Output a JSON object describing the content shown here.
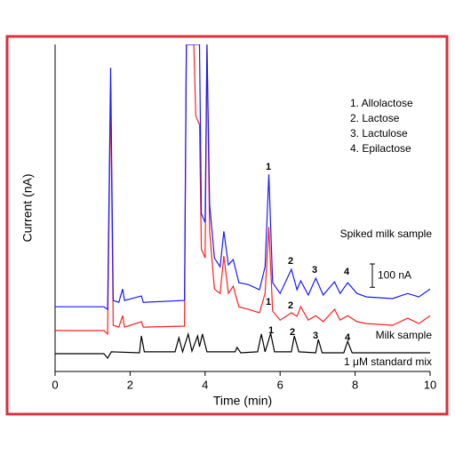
{
  "chart_data": {
    "type": "line",
    "x_title": "Time (min)",
    "y_title": "Current (nA)",
    "xlim": [
      0,
      10
    ],
    "xticks": [
      0,
      2,
      4,
      6,
      8,
      10
    ],
    "ylim": [
      0,
      1400
    ],
    "grid": false,
    "legend_items": [
      "1. Allolactose",
      "2. Lactose",
      "3. Lactulose",
      "4. Epilactose"
    ],
    "peak_numbers": [
      "1",
      "2",
      "3",
      "4"
    ],
    "scale_bar": {
      "value": 100,
      "label": "100 nA"
    },
    "series": [
      {
        "name": "Spiked milk sample",
        "color": "#1a1aff",
        "x": [
          0,
          1.3,
          1.4,
          1.48,
          1.55,
          1.7,
          1.8,
          1.85,
          2.3,
          2.35,
          3.45,
          3.5,
          3.7,
          3.75,
          3.85,
          3.9,
          4.0,
          4.05,
          4.12,
          4.25,
          4.4,
          4.5,
          4.62,
          4.75,
          4.9,
          5.15,
          5.45,
          5.6,
          5.7,
          5.8,
          6.0,
          6.3,
          6.45,
          6.55,
          6.75,
          6.95,
          7.15,
          7.45,
          7.6,
          7.8,
          8.05,
          8.3,
          9.0,
          9.4,
          9.7,
          10
        ],
        "values": [
          277,
          277,
          266,
          1300,
          304,
          296,
          353,
          304,
          323,
          296,
          304,
          1400,
          1400,
          1400,
          1400,
          676,
          638,
          1400,
          714,
          486,
          448,
          600,
          456,
          479,
          380,
          372,
          350,
          448,
          844,
          380,
          334,
          437,
          350,
          388,
          327,
          399,
          327,
          384,
          334,
          380,
          334,
          319,
          312,
          334,
          319,
          353
        ]
      },
      {
        "name": "Milk sample",
        "color": "#ff2020",
        "x": [
          0,
          1.3,
          1.4,
          1.48,
          1.55,
          1.7,
          1.8,
          1.85,
          2.3,
          2.35,
          3.45,
          3.5,
          3.7,
          3.75,
          3.85,
          3.9,
          4.0,
          4.05,
          4.12,
          4.25,
          4.4,
          4.5,
          4.62,
          4.75,
          4.9,
          5.15,
          5.45,
          5.6,
          5.7,
          5.8,
          6.0,
          6.3,
          6.45,
          6.55,
          6.75,
          6.95,
          7.15,
          7.45,
          7.6,
          7.8,
          8.05,
          8.3,
          9.0,
          9.4,
          9.7,
          10
        ],
        "values": [
          175,
          175,
          160,
          1208,
          198,
          190,
          239,
          190,
          213,
          190,
          194,
          1400,
          1400,
          1094,
          1056,
          524,
          486,
          1400,
          600,
          353,
          334,
          494,
          334,
          365,
          277,
          266,
          251,
          334,
          619,
          258,
          220,
          251,
          236,
          277,
          220,
          239,
          213,
          266,
          220,
          239,
          213,
          205,
          198,
          228,
          205,
          239
        ]
      },
      {
        "name": "1 μM standard mix",
        "color": "#000000",
        "x": [
          0,
          1.3,
          1.4,
          1.5,
          2.25,
          2.3,
          2.38,
          3.2,
          3.3,
          3.4,
          3.55,
          3.65,
          3.8,
          3.85,
          3.93,
          4.05,
          4.8,
          4.85,
          4.95,
          5.4,
          5.5,
          5.6,
          5.75,
          5.85,
          6.3,
          6.38,
          6.5,
          6.95,
          7.02,
          7.12,
          7.7,
          7.8,
          7.92,
          10
        ],
        "values": [
          76,
          76,
          57,
          84,
          80,
          152,
          84,
          84,
          144,
          84,
          160,
          87,
          152,
          106,
          160,
          84,
          84,
          103,
          80,
          84,
          160,
          84,
          163,
          84,
          84,
          152,
          84,
          80,
          137,
          80,
          80,
          129,
          80,
          80
        ]
      }
    ]
  }
}
